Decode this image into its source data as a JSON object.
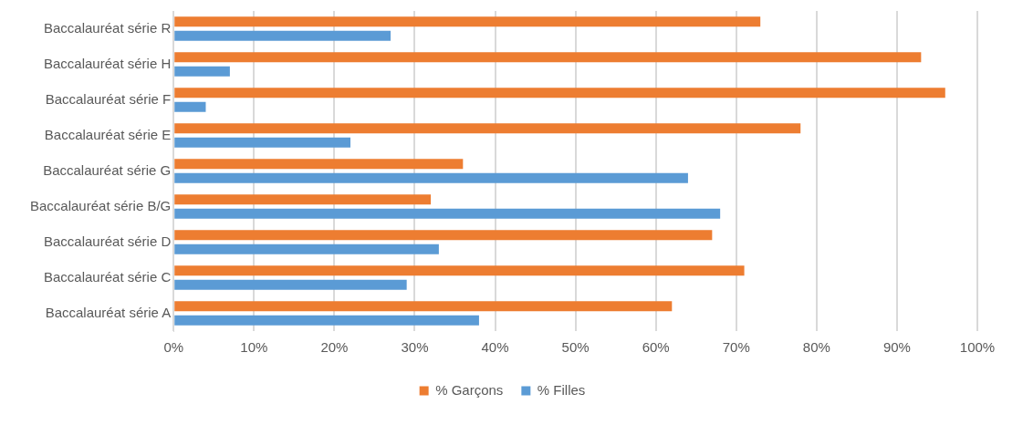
{
  "chart_data": {
    "type": "bar",
    "orientation": "horizontal",
    "categories": [
      "Baccalauréat série R",
      "Baccalauréat série H",
      "Baccalauréat série F",
      "Baccalauréat série E",
      "Baccalauréat série G",
      "Baccalauréat série B/G",
      "Baccalauréat série D",
      "Baccalauréat série C",
      "Baccalauréat série A"
    ],
    "series": [
      {
        "name": "% Garçons",
        "color": "#ed7d31",
        "values": [
          73,
          93,
          96,
          78,
          36,
          32,
          67,
          71,
          62
        ]
      },
      {
        "name": "% Filles",
        "color": "#5b9bd5",
        "values": [
          27,
          7,
          4,
          22,
          64,
          68,
          33,
          29,
          38
        ]
      }
    ],
    "xlim": [
      0,
      100
    ],
    "xticks": [
      {
        "value": 0,
        "label": "0%"
      },
      {
        "value": 10,
        "label": "10%"
      },
      {
        "value": 20,
        "label": "20%"
      },
      {
        "value": 30,
        "label": "30%"
      },
      {
        "value": 40,
        "label": "40%"
      },
      {
        "value": 50,
        "label": "50%"
      },
      {
        "value": 60,
        "label": "60%"
      },
      {
        "value": 70,
        "label": "70%"
      },
      {
        "value": 80,
        "label": "80%"
      },
      {
        "value": 90,
        "label": "90%"
      },
      {
        "value": 100,
        "label": "100%"
      }
    ],
    "grid": "x",
    "legend": "bottom"
  }
}
